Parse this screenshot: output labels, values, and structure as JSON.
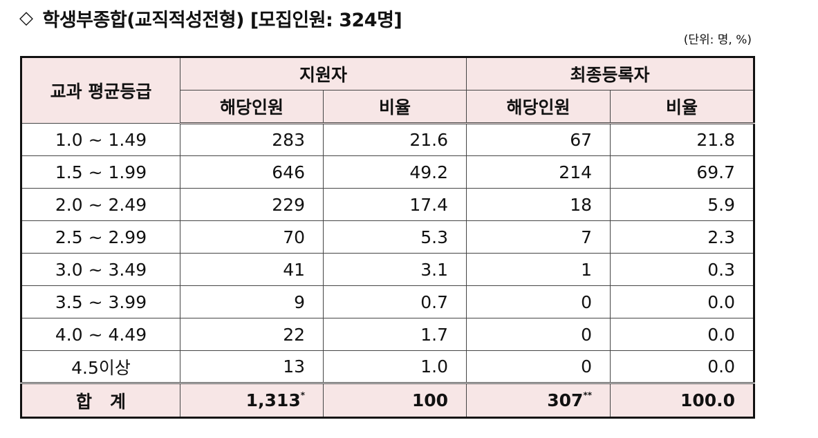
{
  "header": {
    "diamond_symbol": "◇",
    "title": "학생부종합(교직적성전형) [모집인원: 324명]",
    "unit": "(단위: 명, %)"
  },
  "table": {
    "header_grade": "교과 평균등급",
    "header_applicants": "지원자",
    "header_registered": "최종등록자",
    "header_count": "해당인원",
    "header_ratio": "비율",
    "rows": [
      {
        "grade": "1.0 ~ 1.49",
        "app_count": "283",
        "app_ratio": "21.6",
        "reg_count": "67",
        "reg_ratio": "21.8"
      },
      {
        "grade": "1.5 ~ 1.99",
        "app_count": "646",
        "app_ratio": "49.2",
        "reg_count": "214",
        "reg_ratio": "69.7"
      },
      {
        "grade": "2.0 ~ 2.49",
        "app_count": "229",
        "app_ratio": "17.4",
        "reg_count": "18",
        "reg_ratio": "5.9"
      },
      {
        "grade": "2.5 ~ 2.99",
        "app_count": "70",
        "app_ratio": "5.3",
        "reg_count": "7",
        "reg_ratio": "2.3"
      },
      {
        "grade": "3.0 ~ 3.49",
        "app_count": "41",
        "app_ratio": "3.1",
        "reg_count": "1",
        "reg_ratio": "0.3"
      },
      {
        "grade": "3.5 ~ 3.99",
        "app_count": "9",
        "app_ratio": "0.7",
        "reg_count": "0",
        "reg_ratio": "0.0"
      },
      {
        "grade": "4.0 ~ 4.49",
        "app_count": "22",
        "app_ratio": "1.7",
        "reg_count": "0",
        "reg_ratio": "0.0"
      },
      {
        "grade": "4.5이상",
        "app_count": "13",
        "app_ratio": "1.0",
        "reg_count": "0",
        "reg_ratio": "0.0"
      }
    ],
    "total": {
      "label": "합계",
      "app_count": "1,313",
      "app_count_mark": "*",
      "app_ratio": "100",
      "reg_count": "307",
      "reg_count_mark": "**",
      "reg_ratio": "100.0"
    }
  },
  "colors": {
    "header_bg": "#f7e6e6",
    "border": "#111111"
  }
}
